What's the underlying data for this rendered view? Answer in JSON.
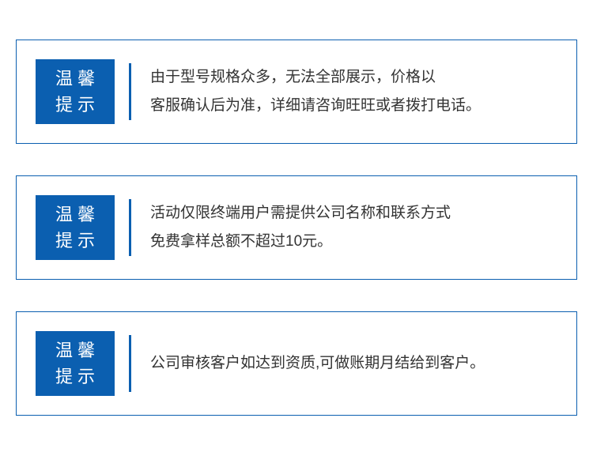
{
  "styling": {
    "border_color": "#0b5fb0",
    "badge_bg": "#0b5fb0",
    "badge_text_color": "#ffffff",
    "body_text_color": "#333333",
    "bg_color": "#ffffff",
    "badge_fontsize": 22,
    "body_fontsize": 19
  },
  "notices": [
    {
      "badge_line1": "温馨",
      "badge_line2": "提示",
      "body_line1": "由于型号规格众多，无法全部展示，价格以",
      "body_line2": "客服确认后为准，详细请咨询旺旺或者拨打电话。"
    },
    {
      "badge_line1": "温馨",
      "badge_line2": "提示",
      "body_line1": "活动仅限终端用户需提供公司名称和联系方式",
      "body_line2": "免费拿样总额不超过10元。"
    },
    {
      "badge_line1": "温馨",
      "badge_line2": "提示",
      "body_line1": "",
      "body_line2": "公司审核客户如达到资质,可做账期月结给到客户。"
    }
  ]
}
